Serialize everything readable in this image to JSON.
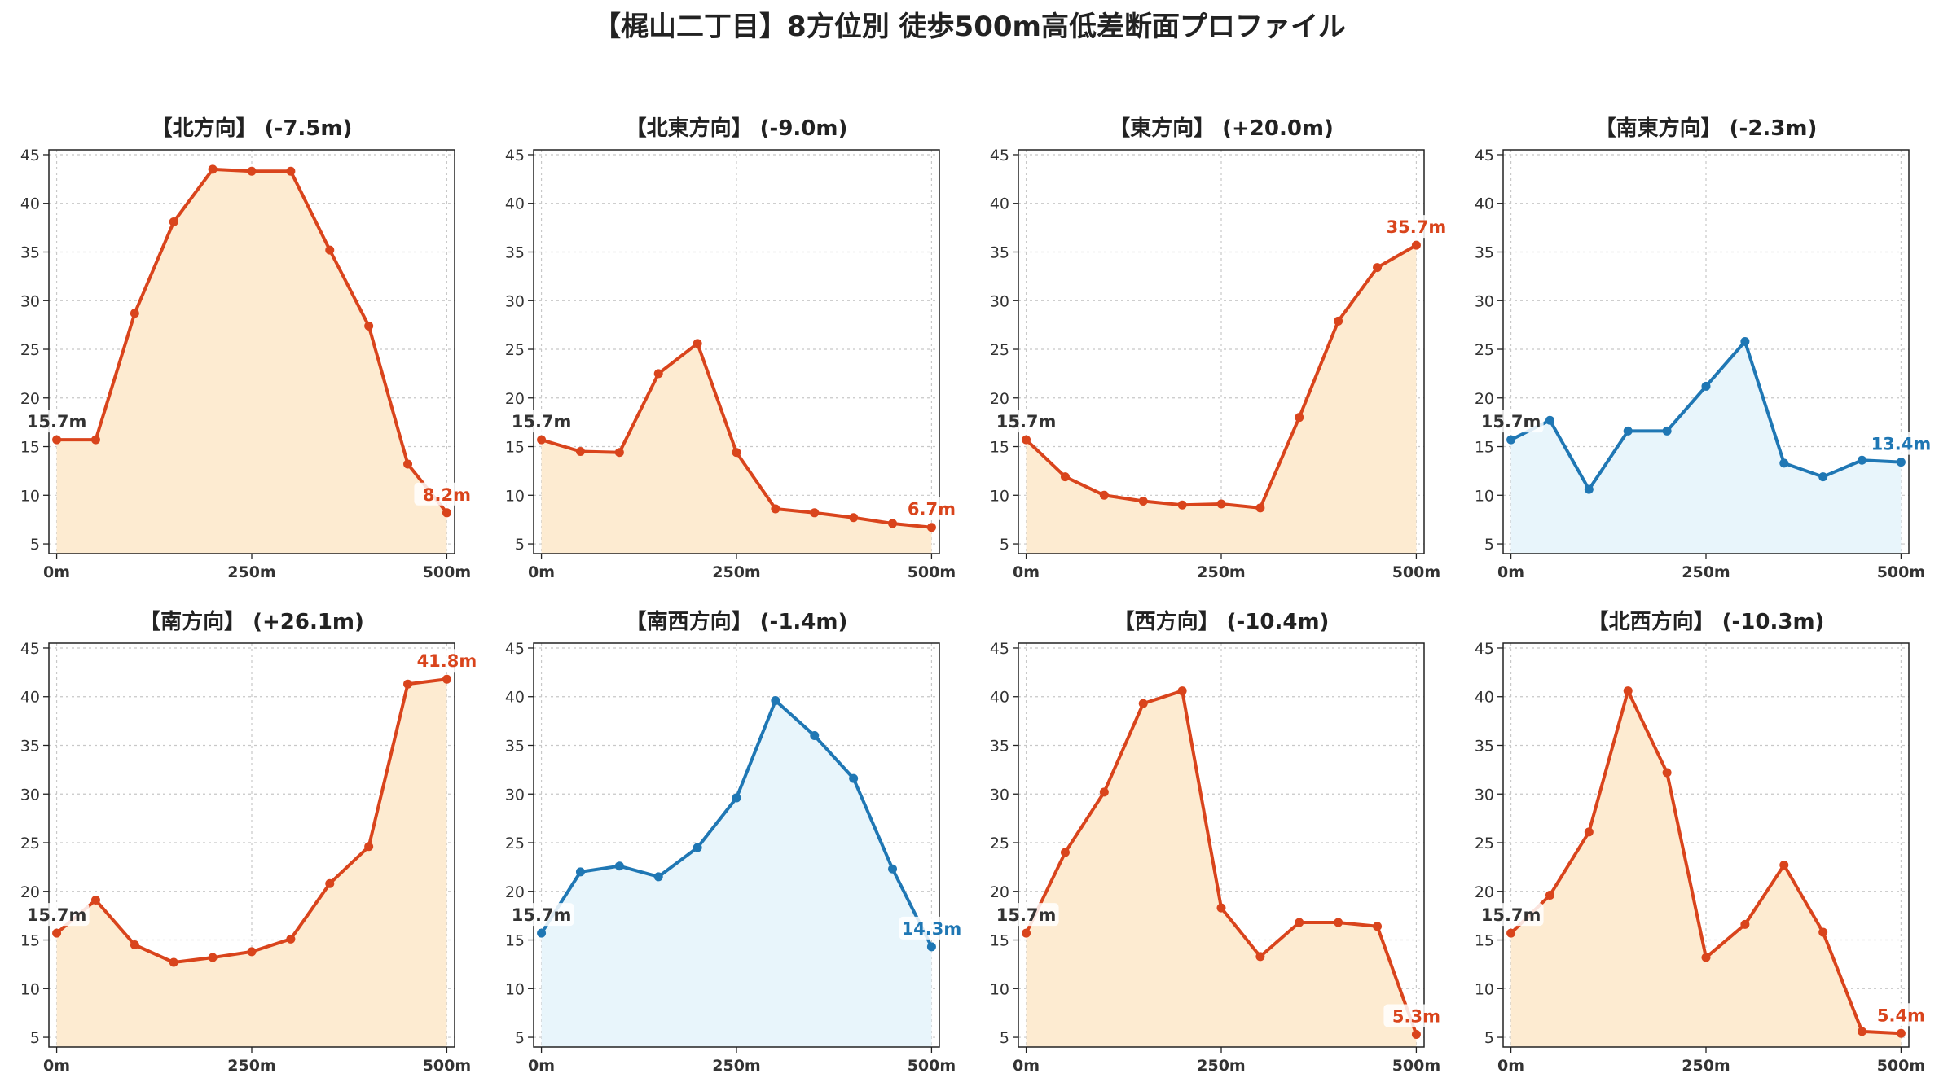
{
  "title": "【梶山二丁目】8方位別 徒歩500m高低差断面プロファイル",
  "colors": {
    "down_line": "#d9441c",
    "down_fill": "#fdebd1",
    "up_line": "#1f77b4",
    "up_fill": "#e8f5fb",
    "start_label": "#333333"
  },
  "chart_data": [
    {
      "type": "area",
      "title": "【北方向】 (-7.5m)",
      "x": [
        0,
        50,
        100,
        150,
        200,
        250,
        300,
        350,
        400,
        450,
        500
      ],
      "values": [
        15.7,
        15.7,
        28.7,
        38.1,
        43.5,
        43.3,
        43.3,
        35.2,
        27.4,
        13.2,
        8.2
      ],
      "start_label": "15.7m",
      "end_label": "8.2m",
      "color_scheme": "down",
      "x_tick_values": [
        0,
        250,
        500
      ],
      "x_tick_labels": [
        "0m",
        "250m",
        "500m"
      ],
      "y_ticks": [
        5,
        10,
        15,
        20,
        25,
        30,
        35,
        40,
        45
      ],
      "xlim": [
        -10,
        510
      ],
      "ylim": [
        4,
        45.5
      ],
      "grid": true
    },
    {
      "type": "area",
      "title": "【北東方向】 (-9.0m)",
      "x": [
        0,
        50,
        100,
        150,
        200,
        250,
        300,
        350,
        400,
        450,
        500
      ],
      "values": [
        15.7,
        14.5,
        14.4,
        22.5,
        25.6,
        14.4,
        8.6,
        8.2,
        7.7,
        7.1,
        6.7
      ],
      "start_label": "15.7m",
      "end_label": "6.7m",
      "color_scheme": "down",
      "x_tick_values": [
        0,
        250,
        500
      ],
      "x_tick_labels": [
        "0m",
        "250m",
        "500m"
      ],
      "y_ticks": [
        5,
        10,
        15,
        20,
        25,
        30,
        35,
        40,
        45
      ],
      "xlim": [
        -10,
        510
      ],
      "ylim": [
        4,
        45.5
      ],
      "grid": true
    },
    {
      "type": "area",
      "title": "【東方向】 (+20.0m)",
      "x": [
        0,
        50,
        100,
        150,
        200,
        250,
        300,
        350,
        400,
        450,
        500
      ],
      "values": [
        15.7,
        11.9,
        10.0,
        9.4,
        9.0,
        9.1,
        8.7,
        18.0,
        27.9,
        33.4,
        35.7
      ],
      "start_label": "15.7m",
      "end_label": "35.7m",
      "color_scheme": "down",
      "x_tick_values": [
        0,
        250,
        500
      ],
      "x_tick_labels": [
        "0m",
        "250m",
        "500m"
      ],
      "y_ticks": [
        5,
        10,
        15,
        20,
        25,
        30,
        35,
        40,
        45
      ],
      "xlim": [
        -10,
        510
      ],
      "ylim": [
        4,
        45.5
      ],
      "grid": true
    },
    {
      "type": "area",
      "title": "【南東方向】 (-2.3m)",
      "x": [
        0,
        50,
        100,
        150,
        200,
        250,
        300,
        350,
        400,
        450,
        500
      ],
      "values": [
        15.7,
        17.7,
        10.6,
        16.6,
        16.6,
        21.2,
        25.8,
        13.3,
        11.9,
        13.6,
        13.4
      ],
      "start_label": "15.7m",
      "end_label": "13.4m",
      "color_scheme": "up",
      "x_tick_values": [
        0,
        250,
        500
      ],
      "x_tick_labels": [
        "0m",
        "250m",
        "500m"
      ],
      "y_ticks": [
        5,
        10,
        15,
        20,
        25,
        30,
        35,
        40,
        45
      ],
      "xlim": [
        -10,
        510
      ],
      "ylim": [
        4,
        45.5
      ],
      "grid": true
    },
    {
      "type": "area",
      "title": "【南方向】 (+26.1m)",
      "x": [
        0,
        50,
        100,
        150,
        200,
        250,
        300,
        350,
        400,
        450,
        500
      ],
      "values": [
        15.7,
        19.1,
        14.5,
        12.7,
        13.2,
        13.8,
        15.1,
        20.8,
        24.6,
        41.3,
        41.8
      ],
      "start_label": "15.7m",
      "end_label": "41.8m",
      "color_scheme": "down",
      "x_tick_values": [
        0,
        250,
        500
      ],
      "x_tick_labels": [
        "0m",
        "250m",
        "500m"
      ],
      "y_ticks": [
        5,
        10,
        15,
        20,
        25,
        30,
        35,
        40,
        45
      ],
      "xlim": [
        -10,
        510
      ],
      "ylim": [
        4,
        45.5
      ],
      "grid": true
    },
    {
      "type": "area",
      "title": "【南西方向】 (-1.4m)",
      "x": [
        0,
        50,
        100,
        150,
        200,
        250,
        300,
        350,
        400,
        450,
        500
      ],
      "values": [
        15.7,
        22.0,
        22.6,
        21.5,
        24.5,
        29.6,
        39.6,
        36.0,
        31.6,
        22.3,
        14.3
      ],
      "start_label": "15.7m",
      "end_label": "14.3m",
      "color_scheme": "up",
      "x_tick_values": [
        0,
        250,
        500
      ],
      "x_tick_labels": [
        "0m",
        "250m",
        "500m"
      ],
      "y_ticks": [
        5,
        10,
        15,
        20,
        25,
        30,
        35,
        40,
        45
      ],
      "xlim": [
        -10,
        510
      ],
      "ylim": [
        4,
        45.5
      ],
      "grid": true
    },
    {
      "type": "area",
      "title": "【西方向】 (-10.4m)",
      "x": [
        0,
        50,
        100,
        150,
        200,
        250,
        300,
        350,
        400,
        450,
        500
      ],
      "values": [
        15.7,
        24.0,
        30.2,
        39.3,
        40.6,
        18.3,
        13.3,
        16.8,
        16.8,
        16.4,
        5.3
      ],
      "start_label": "15.7m",
      "end_label": "5.3m",
      "color_scheme": "down",
      "x_tick_values": [
        0,
        250,
        500
      ],
      "x_tick_labels": [
        "0m",
        "250m",
        "500m"
      ],
      "y_ticks": [
        5,
        10,
        15,
        20,
        25,
        30,
        35,
        40,
        45
      ],
      "xlim": [
        -10,
        510
      ],
      "ylim": [
        4,
        45.5
      ],
      "grid": true
    },
    {
      "type": "area",
      "title": "【北西方向】 (-10.3m)",
      "x": [
        0,
        50,
        100,
        150,
        200,
        250,
        300,
        350,
        400,
        450,
        500
      ],
      "values": [
        15.7,
        19.6,
        26.1,
        40.6,
        32.2,
        13.2,
        16.6,
        22.7,
        15.8,
        5.6,
        5.4
      ],
      "start_label": "15.7m",
      "end_label": "5.4m",
      "color_scheme": "down",
      "x_tick_values": [
        0,
        250,
        500
      ],
      "x_tick_labels": [
        "0m",
        "250m",
        "500m"
      ],
      "y_ticks": [
        5,
        10,
        15,
        20,
        25,
        30,
        35,
        40,
        45
      ],
      "xlim": [
        -10,
        510
      ],
      "ylim": [
        4,
        45.5
      ],
      "grid": true
    }
  ]
}
